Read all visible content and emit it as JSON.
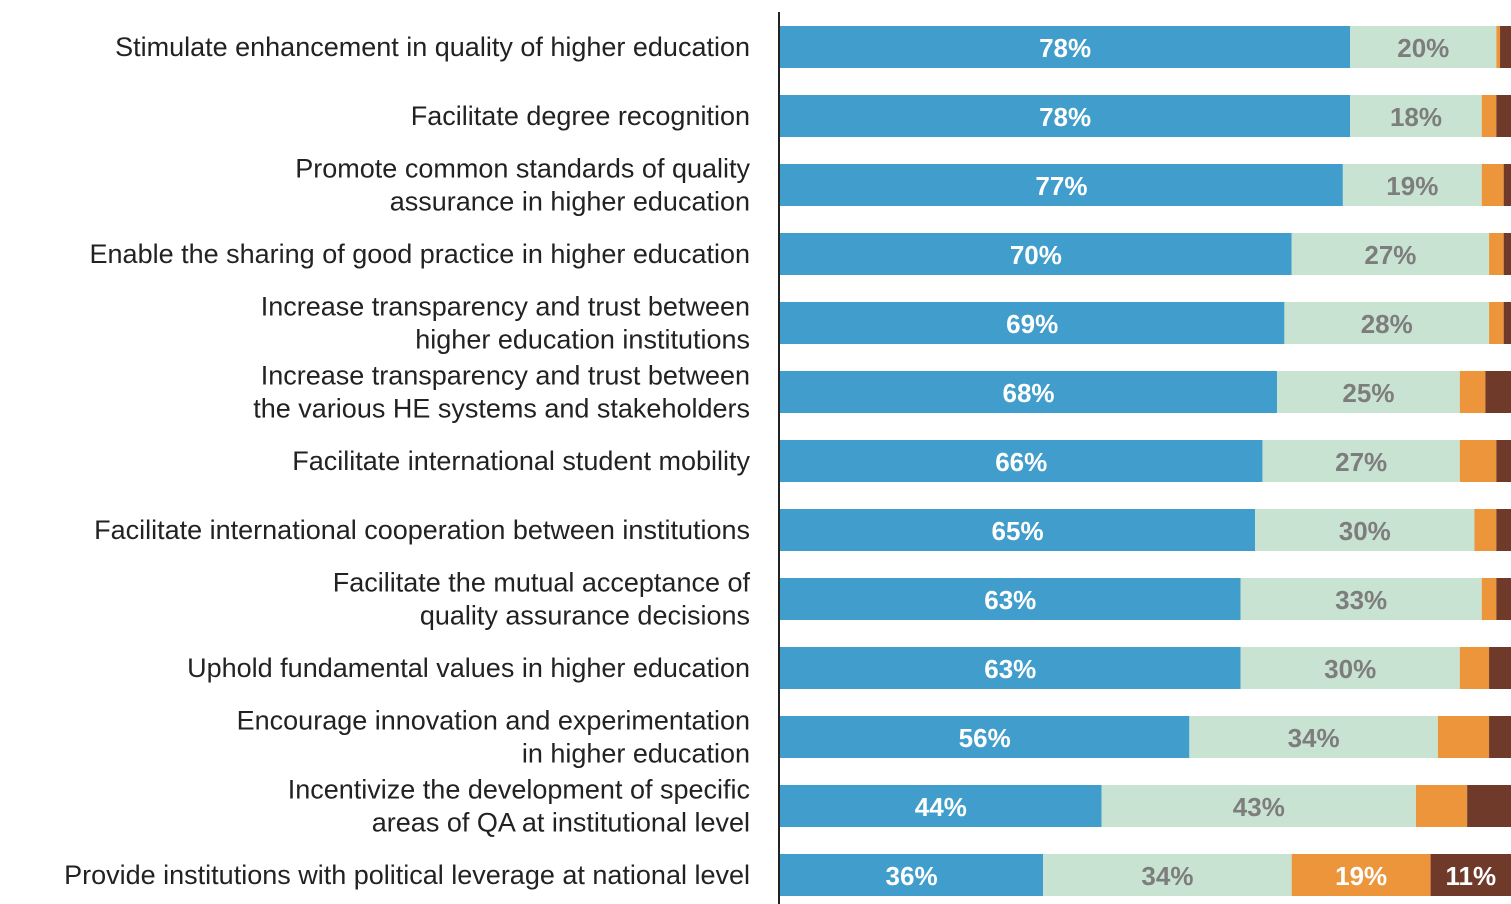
{
  "chart_data": {
    "type": "stacked-barh",
    "categories": [
      [
        "Stimulate enhancement in quality of higher education"
      ],
      [
        "Facilitate degree recognition"
      ],
      [
        "Promote common standards of quality",
        "assurance in higher education"
      ],
      [
        "Enable the sharing of good practice in higher education"
      ],
      [
        "Increase transparency and trust between",
        "higher education institutions"
      ],
      [
        "Increase transparency and trust between",
        "the various HE systems and stakeholders"
      ],
      [
        "Facilitate international student mobility"
      ],
      [
        "Facilitate international cooperation between institutions"
      ],
      [
        "Facilitate the mutual acceptance of",
        "quality assurance decisions"
      ],
      [
        "Uphold fundamental values in higher education"
      ],
      [
        "Encourage innovation and experimentation",
        "in higher education"
      ],
      [
        "Incentivize the development of specific",
        "areas of QA at institutional level"
      ],
      [
        "Provide institutions with political leverage at national level"
      ]
    ],
    "xlim": [
      0,
      100
    ],
    "series": [
      {
        "color": "#419dcc",
        "label_color": "#ffffff",
        "values": [
          78,
          78,
          77,
          70,
          69,
          68,
          66,
          65,
          63,
          63,
          56,
          44,
          36
        ],
        "value_labels": [
          "78%",
          "78%",
          "77%",
          "70%",
          "69%",
          "68%",
          "66%",
          "65%",
          "63%",
          "63%",
          "56%",
          "44%",
          "36%"
        ]
      },
      {
        "color": "#c9e3d2",
        "label_color": "#7d7d7d",
        "values": [
          20,
          18,
          19,
          27,
          28,
          25,
          27,
          30,
          33,
          30,
          34,
          43,
          34
        ],
        "value_labels": [
          "20%",
          "18%",
          "19%",
          "27%",
          "28%",
          "25%",
          "27%",
          "30%",
          "33%",
          "30%",
          "34%",
          "43%",
          "34%"
        ]
      },
      {
        "color": "#ec953a",
        "label_color": "#ffffff",
        "values": [
          0.5,
          2,
          3,
          2,
          2,
          3.5,
          5,
          3,
          2,
          4,
          7,
          7,
          19
        ],
        "value_labels": [
          null,
          null,
          null,
          null,
          null,
          null,
          null,
          null,
          null,
          null,
          null,
          null,
          "19%"
        ]
      },
      {
        "color": "#6f3a2a",
        "label_color": "#ffffff",
        "values": [
          1.5,
          2,
          1,
          1,
          1,
          3.5,
          2,
          2,
          2,
          3,
          3,
          6,
          11
        ],
        "value_labels": [
          null,
          null,
          null,
          null,
          null,
          null,
          null,
          null,
          null,
          null,
          null,
          null,
          "11%"
        ]
      }
    ]
  }
}
